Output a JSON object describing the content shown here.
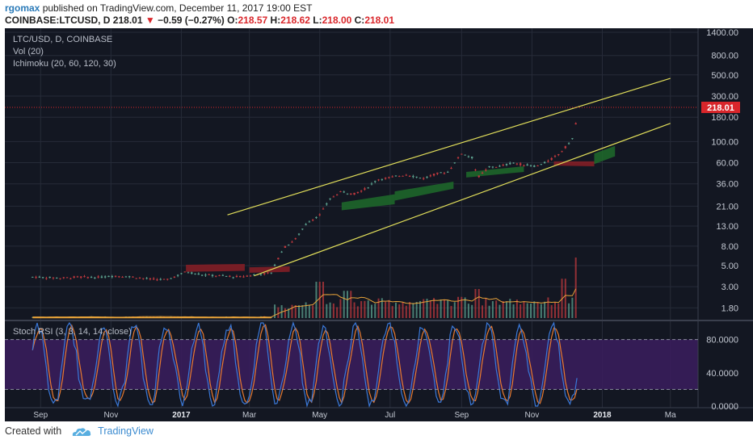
{
  "header": {
    "author": "rgomax",
    "published_text": "published on TradingView.com, December 11, 2017 19:00 EST",
    "symbol": "COINBASE:LTCUSD, D",
    "last": "218.01",
    "change": "−0.59 (−0.27%)",
    "open_label": "O:",
    "open": "218.57",
    "high_label": "H:",
    "high": "218.62",
    "low_label": "L:",
    "low": "218.00",
    "close_label": "C:",
    "close": "218.01"
  },
  "legend": {
    "symbol": "LTC/USD, D, COINBASE",
    "vol": "Vol (20)",
    "ichimoku": "Ichimoku (20, 60, 120, 30)",
    "stoch": "Stoch RSI (3, 3, 14, 14, close)"
  },
  "price_label": "218.01",
  "footer": {
    "created_with": "Created with",
    "brand": "TradingView"
  },
  "colors": {
    "background": "#131722",
    "grid": "#262b38",
    "up": "#5ca08e",
    "down": "#c0393e",
    "channel": "#e0dd5a",
    "price_tag": "#d9262b",
    "volume_ma": "#e8a33a",
    "k_line": "#3a78d8",
    "d_line": "#e87a30",
    "rsi_band": "#3b1d5e",
    "cloud_bull": "#1f6b2a",
    "cloud_bear": "#8a1f26"
  },
  "chart_data": {
    "type": "line",
    "price_scale": "log",
    "price_ticks": [
      "1400.00",
      "800.00",
      "500.00",
      "300.00",
      "180.00",
      "100.00",
      "60.00",
      "36.00",
      "21.00",
      "13.00",
      "8.00",
      "5.00",
      "3.00",
      "1.80"
    ],
    "x_ticks": [
      "Sep",
      "Nov",
      "2017",
      "Mar",
      "May",
      "Jul",
      "Sep",
      "Nov",
      "2018",
      "Ma"
    ],
    "x_dates": [
      "2016-09-01",
      "2016-11-01",
      "2017-01-01",
      "2017-03-01",
      "2017-05-01",
      "2017-07-01",
      "2017-09-01",
      "2017-11-01",
      "2018-01-01",
      "2018-03-01"
    ],
    "price_series": [
      [
        "2016-08-25",
        3.8
      ],
      [
        "2016-09-05",
        3.75
      ],
      [
        "2016-09-20",
        3.7
      ],
      [
        "2016-10-05",
        3.8
      ],
      [
        "2016-10-20",
        3.75
      ],
      [
        "2016-11-05",
        3.9
      ],
      [
        "2016-11-20",
        3.8
      ],
      [
        "2016-12-05",
        3.6
      ],
      [
        "2016-12-20",
        3.55
      ],
      [
        "2017-01-05",
        4.3
      ],
      [
        "2017-01-20",
        4.0
      ],
      [
        "2017-02-05",
        3.9
      ],
      [
        "2017-02-20",
        3.8
      ],
      [
        "2017-03-05",
        4.0
      ],
      [
        "2017-03-20",
        4.2
      ],
      [
        "2017-03-30",
        7.5
      ],
      [
        "2017-04-10",
        9.5
      ],
      [
        "2017-04-20",
        14
      ],
      [
        "2017-05-01",
        17
      ],
      [
        "2017-05-10",
        25
      ],
      [
        "2017-05-20",
        30
      ],
      [
        "2017-05-30",
        28
      ],
      [
        "2017-06-10",
        32
      ],
      [
        "2017-06-20",
        40
      ],
      [
        "2017-07-01",
        42
      ],
      [
        "2017-07-15",
        45
      ],
      [
        "2017-07-30",
        41
      ],
      [
        "2017-08-10",
        46
      ],
      [
        "2017-08-20",
        48
      ],
      [
        "2017-09-01",
        75
      ],
      [
        "2017-09-10",
        68
      ],
      [
        "2017-09-15",
        42
      ],
      [
        "2017-09-25",
        54
      ],
      [
        "2017-10-05",
        55
      ],
      [
        "2017-10-15",
        60
      ],
      [
        "2017-10-25",
        57
      ],
      [
        "2017-11-05",
        55
      ],
      [
        "2017-11-15",
        62
      ],
      [
        "2017-11-25",
        75
      ],
      [
        "2017-12-01",
        90
      ],
      [
        "2017-12-07",
        110
      ],
      [
        "2017-12-11",
        218.01
      ]
    ],
    "channel_upper": [
      [
        "2017-02-10",
        17
      ],
      [
        "2018-03-01",
        460
      ]
    ],
    "channel_lower": [
      [
        "2017-03-05",
        3.9
      ],
      [
        "2018-03-01",
        155
      ]
    ],
    "volume_spikes": [
      [
        "2017-05-01",
        60
      ],
      [
        "2017-05-25",
        45
      ],
      [
        "2017-08-30",
        35
      ],
      [
        "2017-09-15",
        48
      ],
      [
        "2017-11-28",
        65
      ],
      [
        "2017-12-10",
        100
      ]
    ],
    "stoch_rsi_ticks": [
      "80.0000",
      "40.0000",
      "0.0000"
    ],
    "stoch_rsi_band": [
      20,
      80
    ],
    "stoch_rsi_ylim": [
      0,
      100
    ]
  }
}
